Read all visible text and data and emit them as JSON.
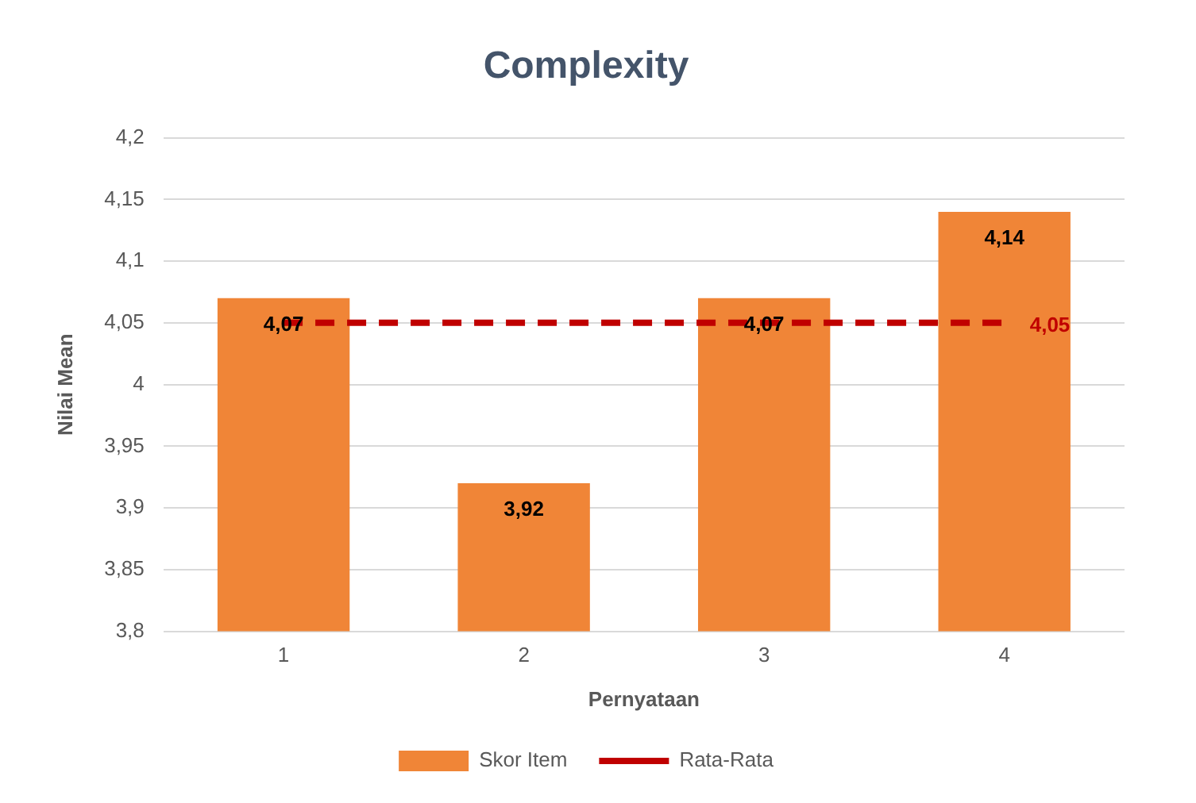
{
  "chart_data": {
    "type": "bar",
    "title": "Complexity",
    "xlabel": "Pernyataan",
    "ylabel": "Nilai Mean",
    "categories": [
      "1",
      "2",
      "3",
      "4"
    ],
    "series": [
      {
        "name": "Skor Item",
        "color": "#f08537",
        "values": [
          4.07,
          3.92,
          4.07,
          4.14
        ],
        "value_labels": [
          "4,07",
          "3,92",
          "4,07",
          "4,14"
        ]
      },
      {
        "name": "Rata-Rata",
        "type": "line",
        "color": "#c00000",
        "line_style": "dashed",
        "marker": "none",
        "values": [
          4.05,
          4.05,
          4.05,
          4.05
        ],
        "value_labels": [
          null,
          null,
          null,
          "4,05"
        ]
      }
    ],
    "ylim": [
      3.8,
      4.2
    ],
    "yticks": [
      {
        "value": 3.8,
        "label": "3,8"
      },
      {
        "value": 3.85,
        "label": "3,85"
      },
      {
        "value": 3.9,
        "label": "3,9"
      },
      {
        "value": 3.95,
        "label": "3,95"
      },
      {
        "value": 4,
        "label": "4"
      },
      {
        "value": 4.05,
        "label": "4,05"
      },
      {
        "value": 4.1,
        "label": "4,1"
      },
      {
        "value": 4.15,
        "label": "4,15"
      },
      {
        "value": 4.2,
        "label": "4,2"
      }
    ],
    "grid": "y",
    "legend": "bottom"
  }
}
